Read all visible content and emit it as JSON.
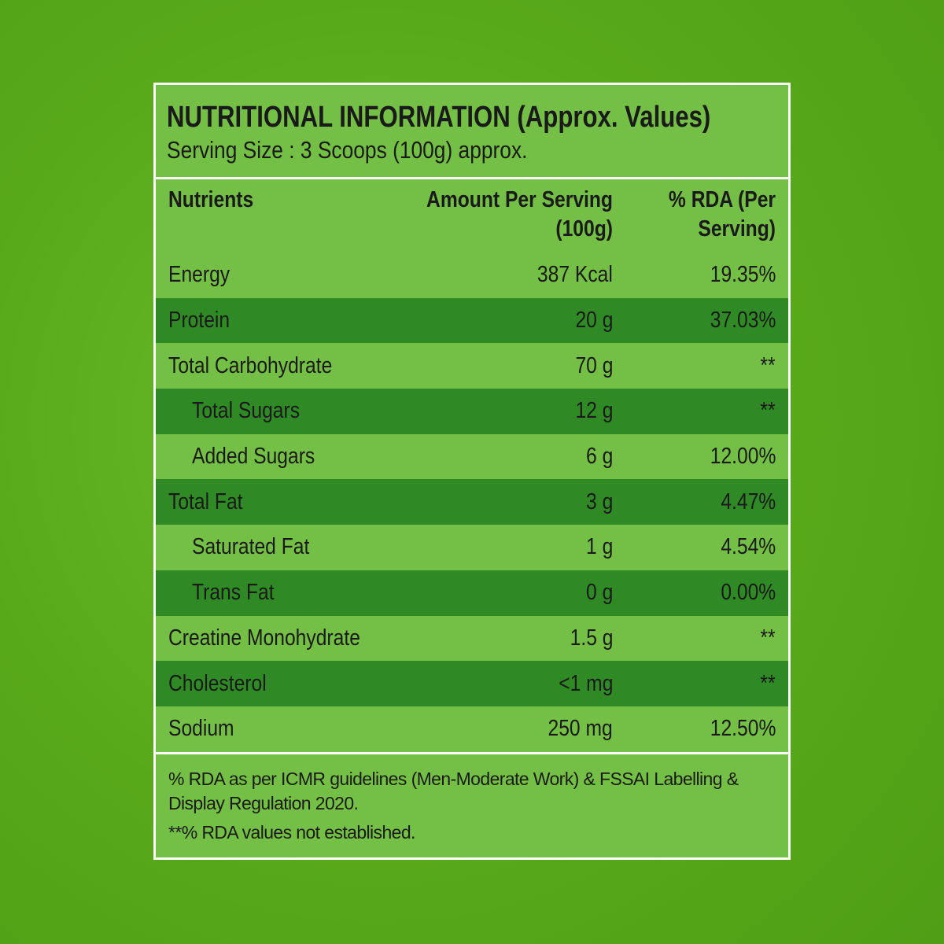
{
  "header": {
    "title": "NUTRITIONAL INFORMATION (Approx. Values)",
    "serving": "Serving Size : 3 Scoops (100g) approx."
  },
  "table": {
    "columns": [
      "Nutrients",
      "Amount Per Serving (100g)",
      "% RDA (Per Serving)"
    ],
    "rows": [
      [
        "Energy",
        "387 Kcal",
        "19.35%"
      ],
      [
        "Protein",
        "20 g",
        "37.03%"
      ],
      [
        "Total Carbohydrate",
        "70 g",
        "**"
      ],
      [
        "Total Sugars",
        "12 g",
        "**"
      ],
      [
        "Added Sugars",
        "6 g",
        "12.00%"
      ],
      [
        "Total Fat",
        "3 g",
        "4.47%"
      ],
      [
        "Saturated Fat",
        "1 g",
        "4.54%"
      ],
      [
        "Trans Fat",
        "0 g",
        "0.00%"
      ],
      [
        "Creatine Monohydrate",
        "1.5 g",
        "**"
      ],
      [
        "Cholesterol",
        "<1 mg",
        "**"
      ],
      [
        "Sodium",
        "250 mg",
        "12.50%"
      ]
    ]
  },
  "footer": {
    "notes": [
      "% RDA as per ICMR guidelines (Men-Moderate Work) & FSSAI Labelling & Display Regulation 2020.",
      "**% RDA values not established."
    ]
  }
}
